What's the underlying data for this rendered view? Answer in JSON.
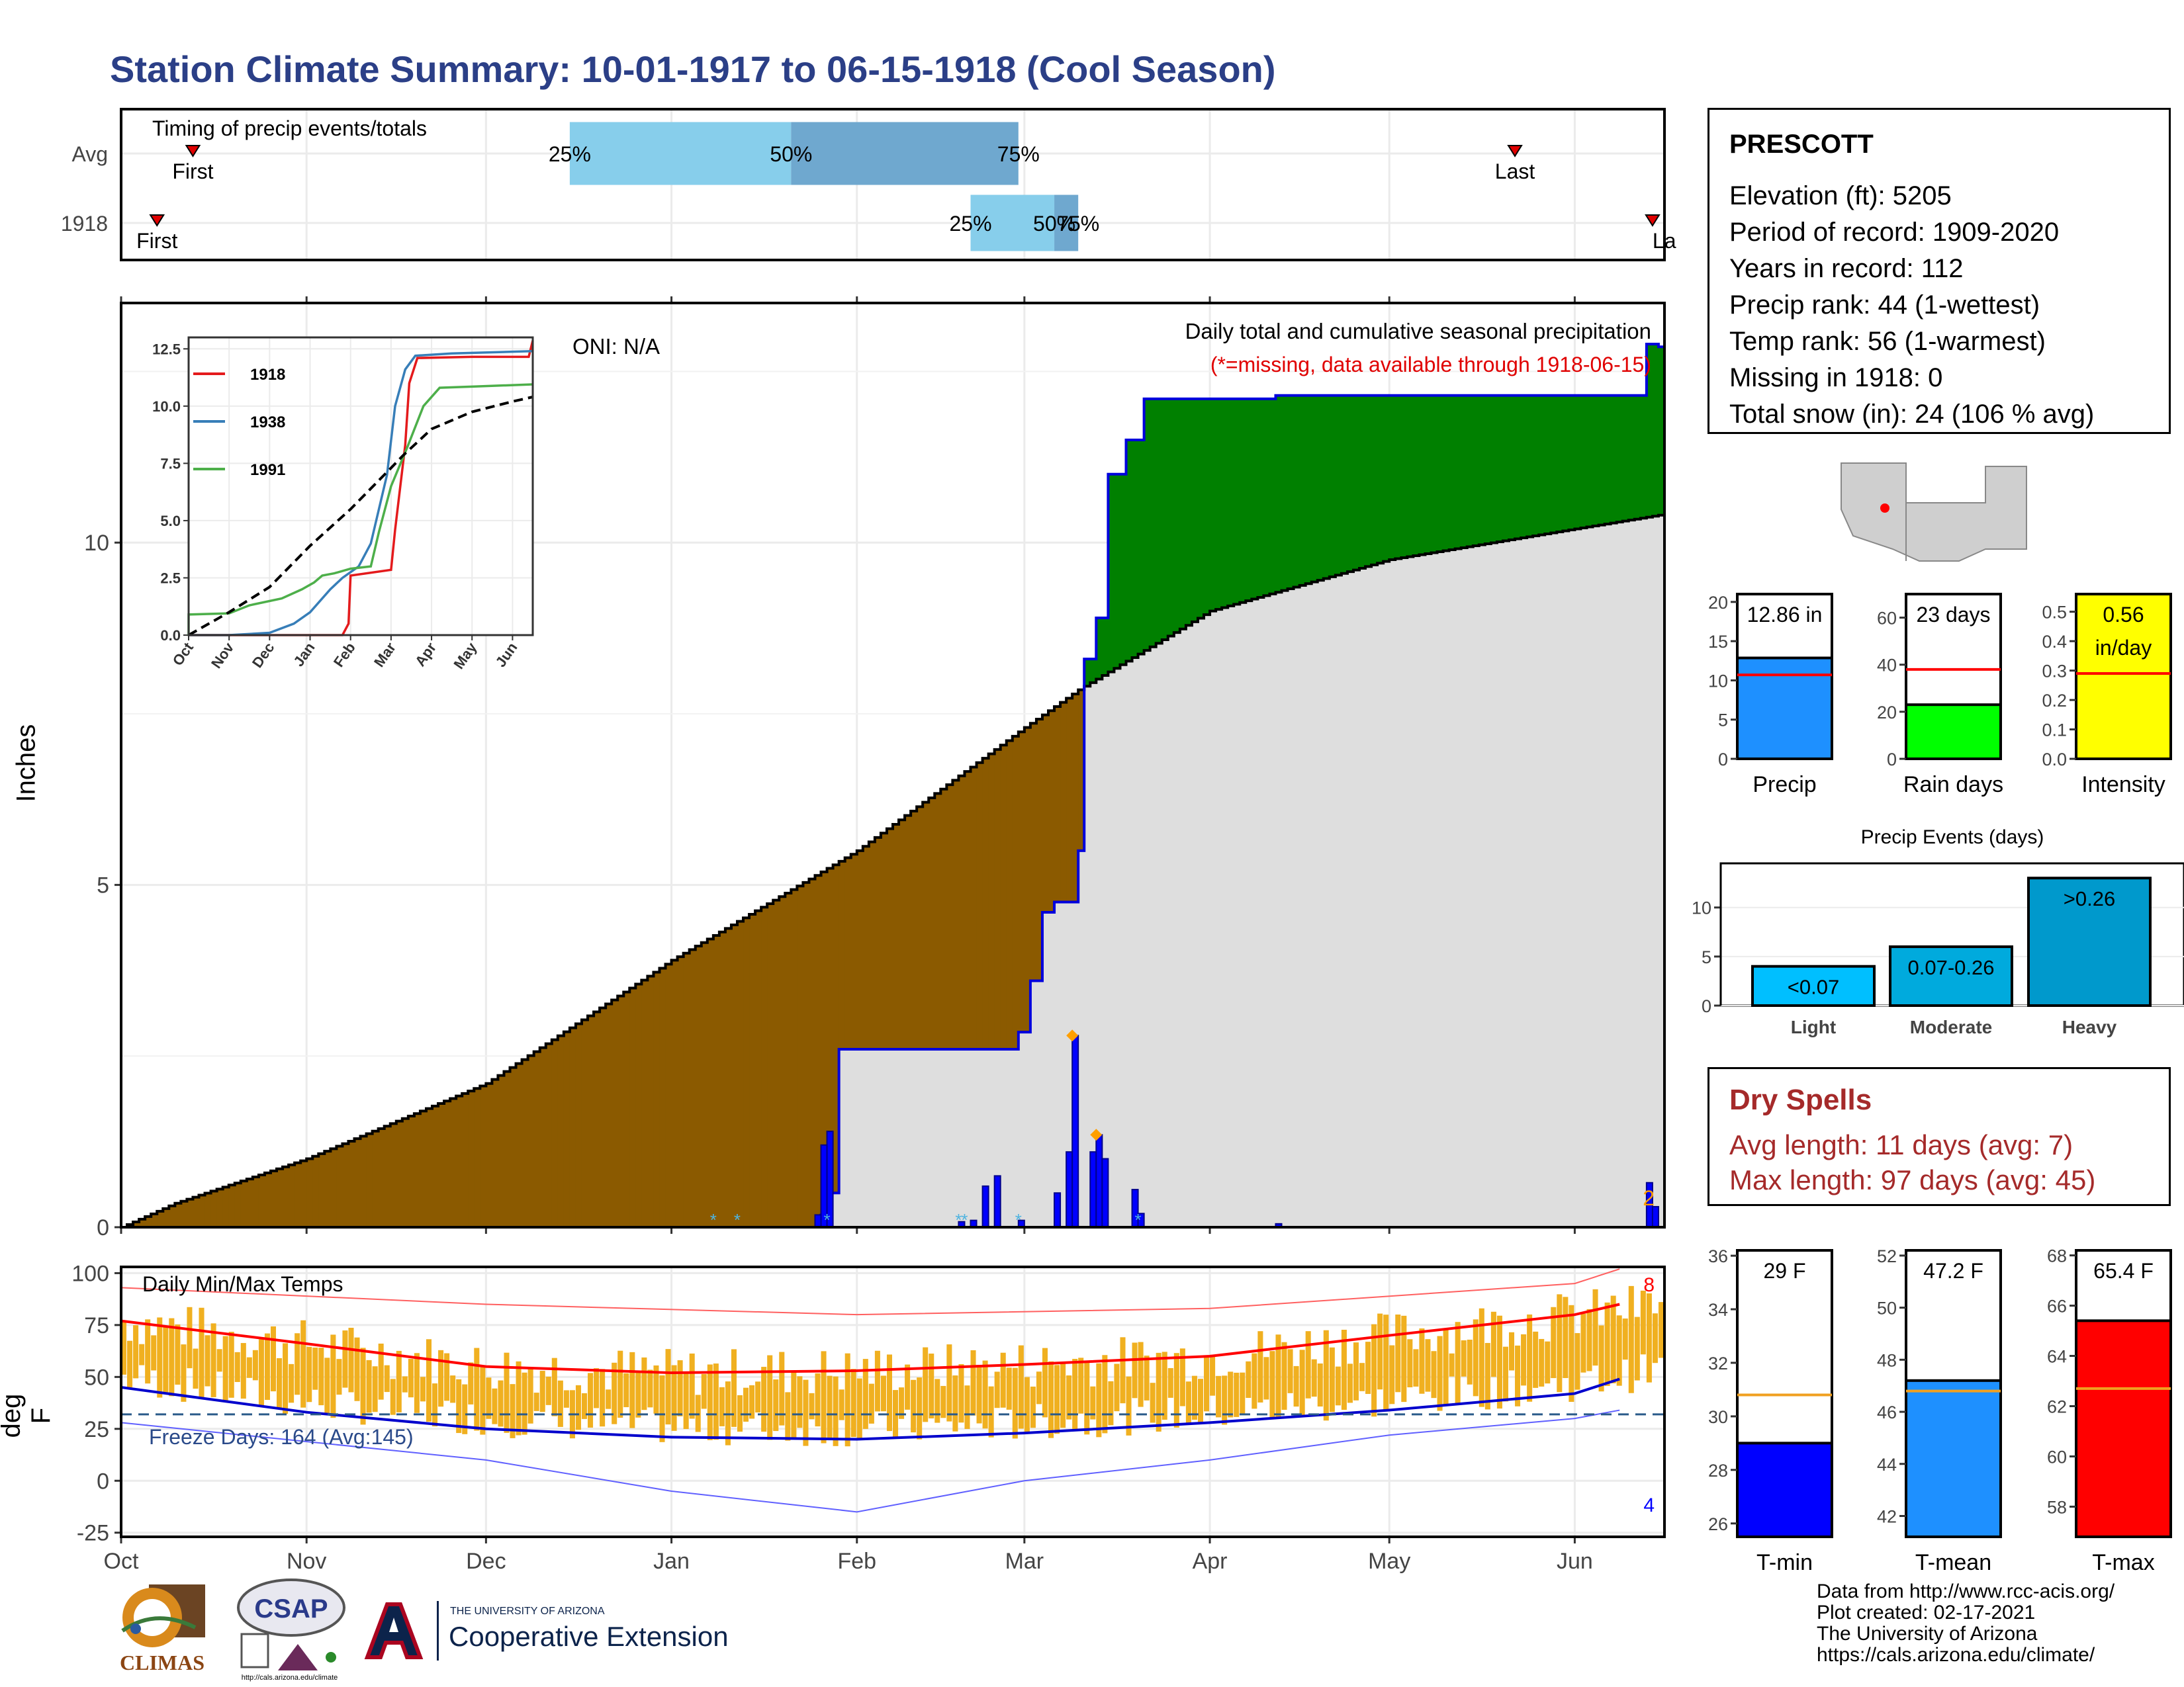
{
  "title": "Station Climate Summary: 10-01-1917 to 06-15-1918 (Cool Season)",
  "station": {
    "name": "PRESCOTT",
    "lines": [
      "Elevation (ft): 5205",
      "Period of record: 1909-2020",
      "Years in record: 112",
      "Precip rank: 44 (1-wettest)",
      "Temp rank: 56 (1-warmest)",
      "Missing in 1918: 0",
      "Total snow (in): 24 (106 % avg)"
    ]
  },
  "dry_spells": {
    "title": "Dry Spells",
    "avg_length": "Avg length: 11 days (avg: 7)",
    "max_length": "Max length: 97 days (avg: 45)"
  },
  "credits": [
    "Data from http://www.rcc-acis.org/",
    "Plot created: 02-17-2021",
    "The University of Arizona",
    "https://cals.arizona.edu/climate/"
  ],
  "logos": {
    "climas": "CLIMAS",
    "csap": "CSAP",
    "csap_url": "http://cals.arizona.edu/climate",
    "ua_line1": "THE UNIVERSITY OF ARIZONA",
    "ua_line2": "Cooperative Extension"
  },
  "colors": {
    "accent_title": "#2b3f87",
    "precip_above": "#008000",
    "precip_below": "#8b5a00",
    "normal_fill": "#dedede",
    "daily_bars": "#0000ff",
    "temp_bars": "#f0b020",
    "tmax_avg": "#ff0000",
    "tmin_avg": "#0000cc",
    "dry_spells": "#a52a2a"
  },
  "chart_data": [
    {
      "id": "timing",
      "type": "bar",
      "title": "Timing of precip events/totals",
      "categories": [
        "Avg",
        "1918"
      ],
      "x_ticks": [
        "Oct",
        "Nov",
        "Dec",
        "Jan",
        "Feb",
        "Mar",
        "Apr",
        "May",
        "Jun"
      ],
      "rows": [
        {
          "label": "Avg",
          "first": "1917-10-13",
          "p25": "1917-12-15",
          "p50": "1918-01-21",
          "p75": "1918-02-28",
          "last": "1918-05-22",
          "first_label": "First",
          "last_label": "Last",
          "p25_label": "25%",
          "p50_label": "50%",
          "p75_label": "75%"
        },
        {
          "label": "1918",
          "first": "1917-10-07",
          "p25": "1918-02-20",
          "p50": "1918-03-06",
          "p75": "1918-03-10",
          "last": "1918-06-14",
          "first_label": "First",
          "last_label": "La",
          "p25_label": "25%",
          "p50_label": "50%",
          "p75_label": "75%"
        }
      ]
    },
    {
      "id": "precip",
      "type": "area",
      "title": "Daily total and cumulative seasonal precipitation",
      "subtitle": "(*=missing, data available through 1918-06-15)",
      "annotation": "ONI: N/A",
      "ylabel": "Inches",
      "ylim": [
        0,
        13.5
      ],
      "y_ticks": [
        0,
        5,
        10
      ],
      "x_ticks": [
        "Oct",
        "Nov",
        "Dec",
        "Jan",
        "Feb",
        "Mar",
        "Apr",
        "May",
        "Jun"
      ],
      "x_range": [
        "1917-10-01",
        "1918-06-15"
      ],
      "corner_count": "2",
      "cumulative_1918": [
        [
          "1917-10-01",
          0
        ],
        [
          "1918-01-25",
          0.0
        ],
        [
          "1918-01-26",
          0.18
        ],
        [
          "1918-01-27",
          0.5
        ],
        [
          "1918-01-29",
          2.6
        ],
        [
          "1918-02-28",
          2.85
        ],
        [
          "1918-03-02",
          3.6
        ],
        [
          "1918-03-04",
          4.6
        ],
        [
          "1918-03-06",
          4.75
        ],
        [
          "1918-03-09",
          4.75
        ],
        [
          "1918-03-10",
          5.5
        ],
        [
          "1918-03-11",
          8.3
        ],
        [
          "1918-03-13",
          8.9
        ],
        [
          "1918-03-15",
          11.0
        ],
        [
          "1918-03-18",
          11.5
        ],
        [
          "1918-03-21",
          12.1
        ],
        [
          "1918-04-12",
          12.15
        ],
        [
          "1918-06-12",
          12.15
        ],
        [
          "1918-06-13",
          12.9
        ],
        [
          "1918-06-15",
          12.86
        ]
      ],
      "cumulative_normal": [
        [
          "1917-10-01",
          0
        ],
        [
          "1917-10-10",
          0.35
        ],
        [
          "1917-11-01",
          1.0
        ],
        [
          "1917-12-01",
          2.1
        ],
        [
          "1918-01-01",
          3.9
        ],
        [
          "1918-02-01",
          5.5
        ],
        [
          "1918-03-01",
          7.3
        ],
        [
          "1918-03-10",
          7.85
        ],
        [
          "1918-04-01",
          9.0
        ],
        [
          "1918-05-01",
          9.75
        ],
        [
          "1918-06-01",
          10.2
        ],
        [
          "1918-06-15",
          10.4
        ]
      ],
      "daily_values": [
        [
          "1918-01-25",
          0.18
        ],
        [
          "1918-01-26",
          1.2
        ],
        [
          "1918-01-27",
          1.4
        ],
        [
          "1918-02-18",
          0.08
        ],
        [
          "1918-02-20",
          0.1
        ],
        [
          "1918-02-22",
          0.6
        ],
        [
          "1918-02-24",
          0.75
        ],
        [
          "1918-02-28",
          0.1
        ],
        [
          "1918-03-06",
          0.5
        ],
        [
          "1918-03-08",
          1.1
        ],
        [
          "1918-03-09",
          2.8
        ],
        [
          "1918-03-12",
          1.1
        ],
        [
          "1918-03-13",
          1.35
        ],
        [
          "1918-03-14",
          1.0
        ],
        [
          "1918-03-19",
          0.55
        ],
        [
          "1918-03-20",
          0.2
        ],
        [
          "1918-04-12",
          0.05
        ],
        [
          "1918-06-13",
          0.65
        ],
        [
          "1918-06-14",
          0.3
        ]
      ],
      "snow_markers": [
        "1918-01-08",
        "1918-01-12",
        "1918-01-27",
        "1918-02-18",
        "1918-02-19",
        "1918-02-28",
        "1918-03-20"
      ],
      "record_markers": [
        [
          "1918-03-09",
          2.8
        ],
        [
          "1918-03-13",
          1.35
        ]
      ]
    },
    {
      "id": "inset",
      "type": "line",
      "x_ticks": [
        "Oct",
        "Nov",
        "Dec",
        "Jan",
        "Feb",
        "Mar",
        "Apr",
        "May",
        "Jun"
      ],
      "y_ticks": [
        "0.0",
        "2.5",
        "5.0",
        "7.5",
        "10.0",
        "12.5"
      ],
      "ylim": [
        0,
        13
      ],
      "series": [
        {
          "name": "1918",
          "color": "#e41a1c",
          "points": [
            [
              0,
              0
            ],
            [
              3.8,
              0
            ],
            [
              3.95,
              0.5
            ],
            [
              4.0,
              2.6
            ],
            [
              5.0,
              2.85
            ],
            [
              5.1,
              4.6
            ],
            [
              5.35,
              8.3
            ],
            [
              5.45,
              11.0
            ],
            [
              5.65,
              12.1
            ],
            [
              7.0,
              12.15
            ],
            [
              8.4,
              12.15
            ],
            [
              8.5,
              12.86
            ]
          ]
        },
        {
          "name": "1938",
          "color": "#377eb8",
          "points": [
            [
              0,
              0
            ],
            [
              1.0,
              0
            ],
            [
              2.0,
              0.1
            ],
            [
              2.6,
              0.5
            ],
            [
              3.0,
              1.0
            ],
            [
              3.5,
              2.0
            ],
            [
              3.8,
              2.5
            ],
            [
              4.2,
              3.0
            ],
            [
              4.5,
              4.0
            ],
            [
              4.9,
              7.0
            ],
            [
              5.1,
              10.0
            ],
            [
              5.35,
              11.6
            ],
            [
              5.6,
              12.2
            ],
            [
              6.5,
              12.3
            ],
            [
              8.5,
              12.4
            ]
          ]
        },
        {
          "name": "1991",
          "color": "#4daf4a",
          "points": [
            [
              0,
              0
            ],
            [
              0,
              0.9
            ],
            [
              1.0,
              0.95
            ],
            [
              1.5,
              1.3
            ],
            [
              2.3,
              1.6
            ],
            [
              2.8,
              2.0
            ],
            [
              3.1,
              2.3
            ],
            [
              3.3,
              2.6
            ],
            [
              3.6,
              2.7
            ],
            [
              4.0,
              2.9
            ],
            [
              4.5,
              3.0
            ],
            [
              4.7,
              4.5
            ],
            [
              5.0,
              6.5
            ],
            [
              5.4,
              8.2
            ],
            [
              5.8,
              10.0
            ],
            [
              6.2,
              10.8
            ],
            [
              7.0,
              10.85
            ],
            [
              8.5,
              10.95
            ]
          ]
        },
        {
          "name": "Avg",
          "color": "#000000",
          "dash": true,
          "points": [
            [
              0,
              0
            ],
            [
              1,
              1.0
            ],
            [
              2,
              2.1
            ],
            [
              3,
              3.9
            ],
            [
              4,
              5.5
            ],
            [
              5,
              7.3
            ],
            [
              5.3,
              7.85
            ],
            [
              6,
              9.0
            ],
            [
              7,
              9.75
            ],
            [
              8,
              10.2
            ],
            [
              8.5,
              10.4
            ]
          ]
        }
      ]
    },
    {
      "id": "bars-precip",
      "type": "bar",
      "categories": [
        "Precip",
        "Rain days",
        "Intensity"
      ],
      "values": [
        12.86,
        23,
        0.56
      ],
      "averages": [
        10.7,
        38,
        0.29
      ],
      "labels": [
        "12.86 in",
        "23 days",
        "0.56 in/day"
      ],
      "ylims": [
        [
          0,
          21
        ],
        [
          0,
          70
        ],
        [
          0,
          0.56
        ]
      ],
      "y_ticks": [
        [
          "0",
          "5",
          "10",
          "15",
          "20"
        ],
        [
          "0",
          "20",
          "40",
          "60"
        ],
        [
          "0.0",
          "0.1",
          "0.2",
          "0.3",
          "0.4",
          "0.5"
        ]
      ],
      "colors": [
        "#1e90ff",
        "#00ff00",
        "#ffff00"
      ]
    },
    {
      "id": "precip-events",
      "type": "bar",
      "title": "Precip Events (days)",
      "categories": [
        "Light",
        "Moderate",
        "Heavy"
      ],
      "values": [
        4,
        6,
        13
      ],
      "labels": [
        "<0.07",
        "0.07-0.26",
        ">0.26"
      ],
      "ylim": [
        0,
        14.5
      ],
      "y_ticks": [
        "0",
        "5",
        "10"
      ],
      "colors": [
        "#00bfff",
        "#00aadd",
        "#0099cc"
      ]
    },
    {
      "id": "temps",
      "type": "bar",
      "title": "Daily Min/Max Temps",
      "ylabel": "deg F",
      "ylim": [
        -27,
        103
      ],
      "y_ticks": [
        "-25",
        "0",
        "25",
        "50",
        "75",
        "100"
      ],
      "x_ticks": [
        "Oct",
        "Nov",
        "Dec",
        "Jan",
        "Feb",
        "Mar",
        "Apr",
        "May",
        "Jun"
      ],
      "freeze_label": "Freeze Days: 164 (Avg:145)",
      "freeze_line": 32,
      "count_top": "8",
      "count_bottom": "4",
      "tmax_avg": [
        [
          0,
          77
        ],
        [
          1,
          66
        ],
        [
          2,
          55
        ],
        [
          3,
          52
        ],
        [
          4,
          53
        ],
        [
          5,
          56
        ],
        [
          6,
          60
        ],
        [
          7,
          70
        ],
        [
          8,
          80
        ],
        [
          8.5,
          85
        ]
      ],
      "tmin_avg": [
        [
          0,
          45
        ],
        [
          1,
          33
        ],
        [
          2,
          25
        ],
        [
          3,
          21
        ],
        [
          4,
          20
        ],
        [
          5,
          23
        ],
        [
          6,
          28
        ],
        [
          7,
          34
        ],
        [
          8,
          42
        ],
        [
          8.5,
          49
        ]
      ],
      "tmax_record": [
        [
          0,
          93
        ],
        [
          2,
          85
        ],
        [
          4,
          80
        ],
        [
          6,
          83
        ],
        [
          8,
          95
        ],
        [
          8.5,
          102
        ]
      ],
      "tmin_record": [
        [
          0,
          28
        ],
        [
          2,
          10
        ],
        [
          3,
          -5
        ],
        [
          4,
          -15
        ],
        [
          5,
          0
        ],
        [
          6,
          10
        ],
        [
          7,
          22
        ],
        [
          8,
          30
        ],
        [
          8.5,
          34
        ]
      ]
    },
    {
      "id": "bars-temp",
      "type": "bar",
      "categories": [
        "T-min",
        "T-mean",
        "T-max"
      ],
      "values": [
        29,
        47.2,
        65.4
      ],
      "averages": [
        30.8,
        46.8,
        62.7
      ],
      "labels": [
        "29 F",
        "47.2 F",
        "65.4 F"
      ],
      "ylims": [
        [
          25.5,
          36.2
        ],
        [
          41.2,
          52.2
        ],
        [
          56.8,
          68.2
        ]
      ],
      "y_ticks": [
        [
          "26",
          "28",
          "30",
          "32",
          "34",
          "36"
        ],
        [
          "42",
          "44",
          "46",
          "48",
          "50",
          "52"
        ],
        [
          "58",
          "60",
          "62",
          "64",
          "66",
          "68"
        ]
      ],
      "colors": [
        "#0000ff",
        "#1e90ff",
        "#ff0000"
      ]
    }
  ]
}
